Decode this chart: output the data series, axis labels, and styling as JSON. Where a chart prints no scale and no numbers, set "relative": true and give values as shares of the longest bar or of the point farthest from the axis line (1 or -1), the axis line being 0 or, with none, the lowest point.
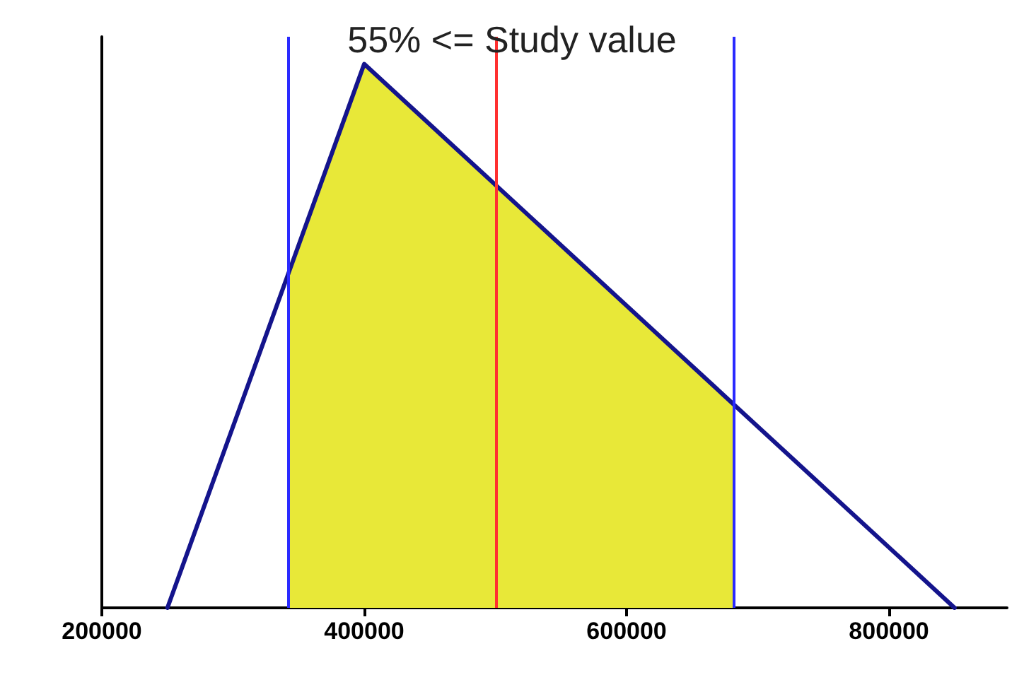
{
  "chart_data": {
    "type": "line",
    "title": "55% <= Study value",
    "relative": true,
    "xlim": [
      200000,
      890000
    ],
    "xticks": [
      200000,
      400000,
      600000,
      800000
    ],
    "series": [
      {
        "type": "area",
        "color": "#e8e838",
        "x": [
          342000,
          400000,
          682000
        ],
        "values": [
          0.613,
          1,
          0.373
        ]
      },
      {
        "type": "line",
        "color": "#14148c",
        "x": [
          250000,
          400000,
          850000
        ],
        "values": [
          0,
          1,
          0
        ]
      }
    ],
    "ref_lines": [
      {
        "axis": "x",
        "value": 342000,
        "color": "#2a2aff"
      },
      {
        "axis": "x",
        "value": 500000,
        "color": "#ff3030"
      },
      {
        "axis": "x",
        "value": 682000,
        "color": "#2a2aff"
      }
    ],
    "grid": false,
    "marker": "none"
  }
}
